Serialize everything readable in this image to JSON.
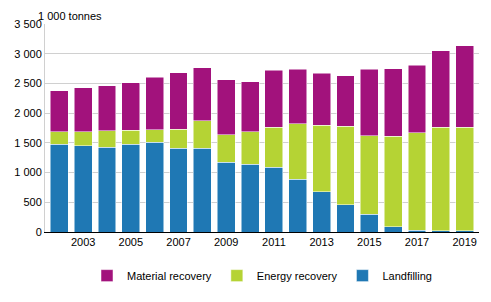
{
  "chart_data": {
    "type": "bar",
    "stacked": true,
    "ylabel": "1 000 tonnes",
    "categories": [
      null,
      "2003",
      null,
      "2005",
      null,
      "2007",
      null,
      "2009",
      null,
      "2011",
      null,
      "2013",
      null,
      "2015",
      null,
      "2017",
      null,
      "2019"
    ],
    "series": [
      {
        "name": "Landfilling",
        "color": "#1f78b4",
        "values": [
          1480,
          1450,
          1430,
          1480,
          1510,
          1410,
          1410,
          1170,
          1140,
          1090,
          890,
          680,
          460,
          300,
          90,
          30,
          20,
          20
        ]
      },
      {
        "name": "Energy recovery",
        "color": "#b5d334",
        "values": [
          210,
          240,
          270,
          230,
          210,
          320,
          460,
          470,
          550,
          670,
          930,
          1120,
          1320,
          1320,
          1520,
          1640,
          1740,
          1740
        ]
      },
      {
        "name": "Material recovery",
        "color": "#a2127c",
        "values": [
          690,
          740,
          760,
          800,
          880,
          950,
          890,
          920,
          840,
          960,
          920,
          870,
          850,
          1120,
          1140,
          1140,
          1290,
          1370
        ]
      }
    ],
    "ylim": [
      0,
      3500
    ],
    "yticks": [
      0,
      500,
      {
        "value": 1000,
        "label": "1 000"
      },
      {
        "value": 1500,
        "label": "1 500"
      },
      {
        "value": 2000,
        "label": "2 000"
      },
      {
        "value": 2500,
        "label": "2 500"
      },
      {
        "value": 3000,
        "label": "3 000"
      },
      {
        "value": 3500,
        "label": "3 500"
      }
    ],
    "grid": true,
    "legend": "bottom"
  }
}
